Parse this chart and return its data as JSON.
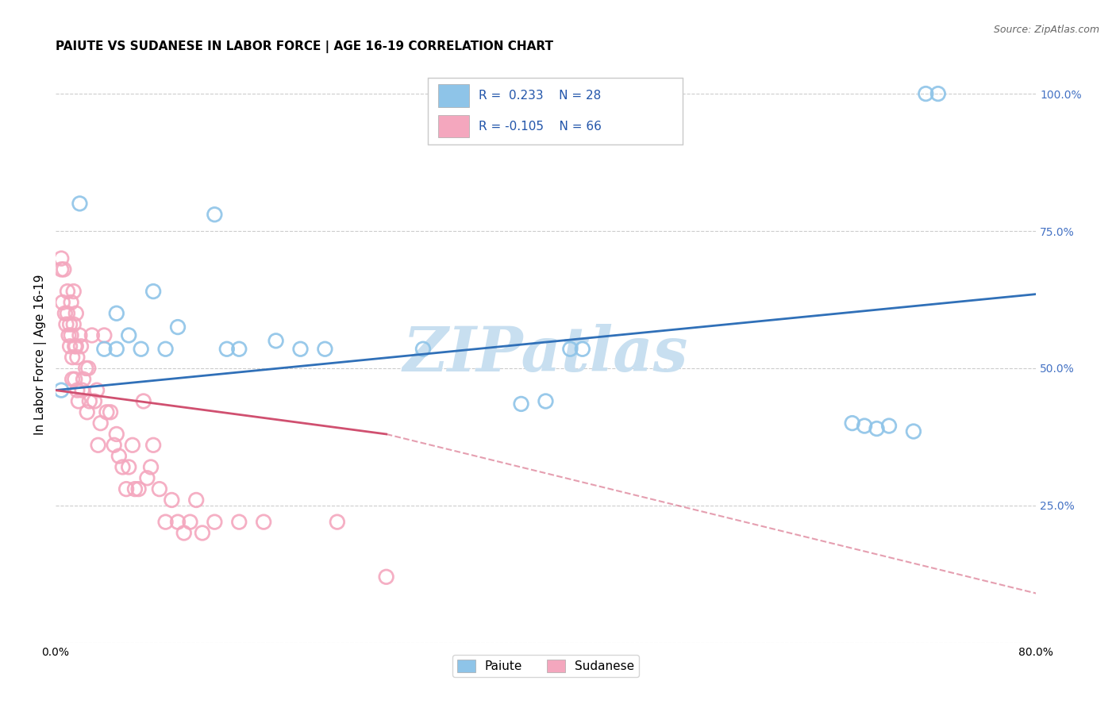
{
  "title": "PAIUTE VS SUDANESE IN LABOR FORCE | AGE 16-19 CORRELATION CHART",
  "source": "Source: ZipAtlas.com",
  "ylabel": "In Labor Force | Age 16-19",
  "xlim": [
    0.0,
    0.8
  ],
  "ylim": [
    0.0,
    1.05
  ],
  "xticks": [
    0.0,
    0.1,
    0.2,
    0.3,
    0.4,
    0.5,
    0.6,
    0.7,
    0.8
  ],
  "xticklabels": [
    "0.0%",
    "",
    "",
    "",
    "",
    "",
    "",
    "",
    "80.0%"
  ],
  "yticks": [
    0.0,
    0.25,
    0.5,
    0.75,
    1.0
  ],
  "yticklabels_right": [
    "",
    "25.0%",
    "50.0%",
    "75.0%",
    "100.0%"
  ],
  "paiute_color": "#8ec4e8",
  "sudanese_color": "#f4a7be",
  "trend_paiute_color": "#3070b8",
  "trend_sudanese_color": "#d05070",
  "watermark": "ZIPatlas",
  "watermark_color": "#c8dff0",
  "paiute_x": [
    0.005,
    0.02,
    0.04,
    0.05,
    0.05,
    0.06,
    0.07,
    0.08,
    0.09,
    0.1,
    0.13,
    0.14,
    0.15,
    0.18,
    0.2,
    0.22,
    0.3,
    0.38,
    0.4,
    0.42,
    0.43,
    0.65,
    0.66,
    0.67,
    0.68,
    0.7,
    0.71,
    0.72
  ],
  "paiute_y": [
    0.46,
    0.8,
    0.535,
    0.6,
    0.535,
    0.56,
    0.535,
    0.64,
    0.535,
    0.575,
    0.78,
    0.535,
    0.535,
    0.55,
    0.535,
    0.535,
    0.535,
    0.435,
    0.44,
    0.535,
    0.535,
    0.4,
    0.395,
    0.39,
    0.395,
    0.385,
    1.0,
    1.0
  ],
  "sudanese_x": [
    0.005,
    0.005,
    0.006,
    0.007,
    0.008,
    0.009,
    0.01,
    0.01,
    0.011,
    0.012,
    0.012,
    0.013,
    0.013,
    0.014,
    0.014,
    0.015,
    0.015,
    0.016,
    0.016,
    0.017,
    0.017,
    0.018,
    0.018,
    0.019,
    0.02,
    0.021,
    0.022,
    0.023,
    0.025,
    0.026,
    0.027,
    0.028,
    0.03,
    0.032,
    0.034,
    0.035,
    0.037,
    0.04,
    0.042,
    0.045,
    0.048,
    0.05,
    0.052,
    0.055,
    0.058,
    0.06,
    0.063,
    0.065,
    0.068,
    0.072,
    0.075,
    0.078,
    0.08,
    0.085,
    0.09,
    0.095,
    0.1,
    0.105,
    0.11,
    0.115,
    0.12,
    0.13,
    0.15,
    0.17,
    0.23,
    0.27
  ],
  "sudanese_y": [
    0.68,
    0.7,
    0.62,
    0.68,
    0.6,
    0.58,
    0.64,
    0.6,
    0.56,
    0.58,
    0.54,
    0.62,
    0.56,
    0.52,
    0.48,
    0.64,
    0.58,
    0.54,
    0.48,
    0.6,
    0.54,
    0.52,
    0.46,
    0.44,
    0.56,
    0.54,
    0.46,
    0.48,
    0.5,
    0.42,
    0.5,
    0.44,
    0.56,
    0.44,
    0.46,
    0.36,
    0.4,
    0.56,
    0.42,
    0.42,
    0.36,
    0.38,
    0.34,
    0.32,
    0.28,
    0.32,
    0.36,
    0.28,
    0.28,
    0.44,
    0.3,
    0.32,
    0.36,
    0.28,
    0.22,
    0.26,
    0.22,
    0.2,
    0.22,
    0.26,
    0.2,
    0.22,
    0.22,
    0.22,
    0.22,
    0.12
  ],
  "paiute_trend": [
    0.0,
    0.8,
    0.46,
    0.635
  ],
  "sudanese_trend_solid": [
    0.0,
    0.27,
    0.46,
    0.38
  ],
  "sudanese_trend_dashed": [
    0.27,
    0.8,
    0.38,
    0.09
  ],
  "bottom_legend": [
    {
      "label": "Paiute",
      "color": "#8ec4e8"
    },
    {
      "label": "Sudanese",
      "color": "#f4a7be"
    }
  ],
  "bg_color": "#ffffff",
  "grid_color": "#cccccc",
  "title_fontsize": 11,
  "axis_label_fontsize": 11,
  "tick_fontsize": 10,
  "right_ytick_color": "#4472c4",
  "legend_text_color": "#2255aa"
}
